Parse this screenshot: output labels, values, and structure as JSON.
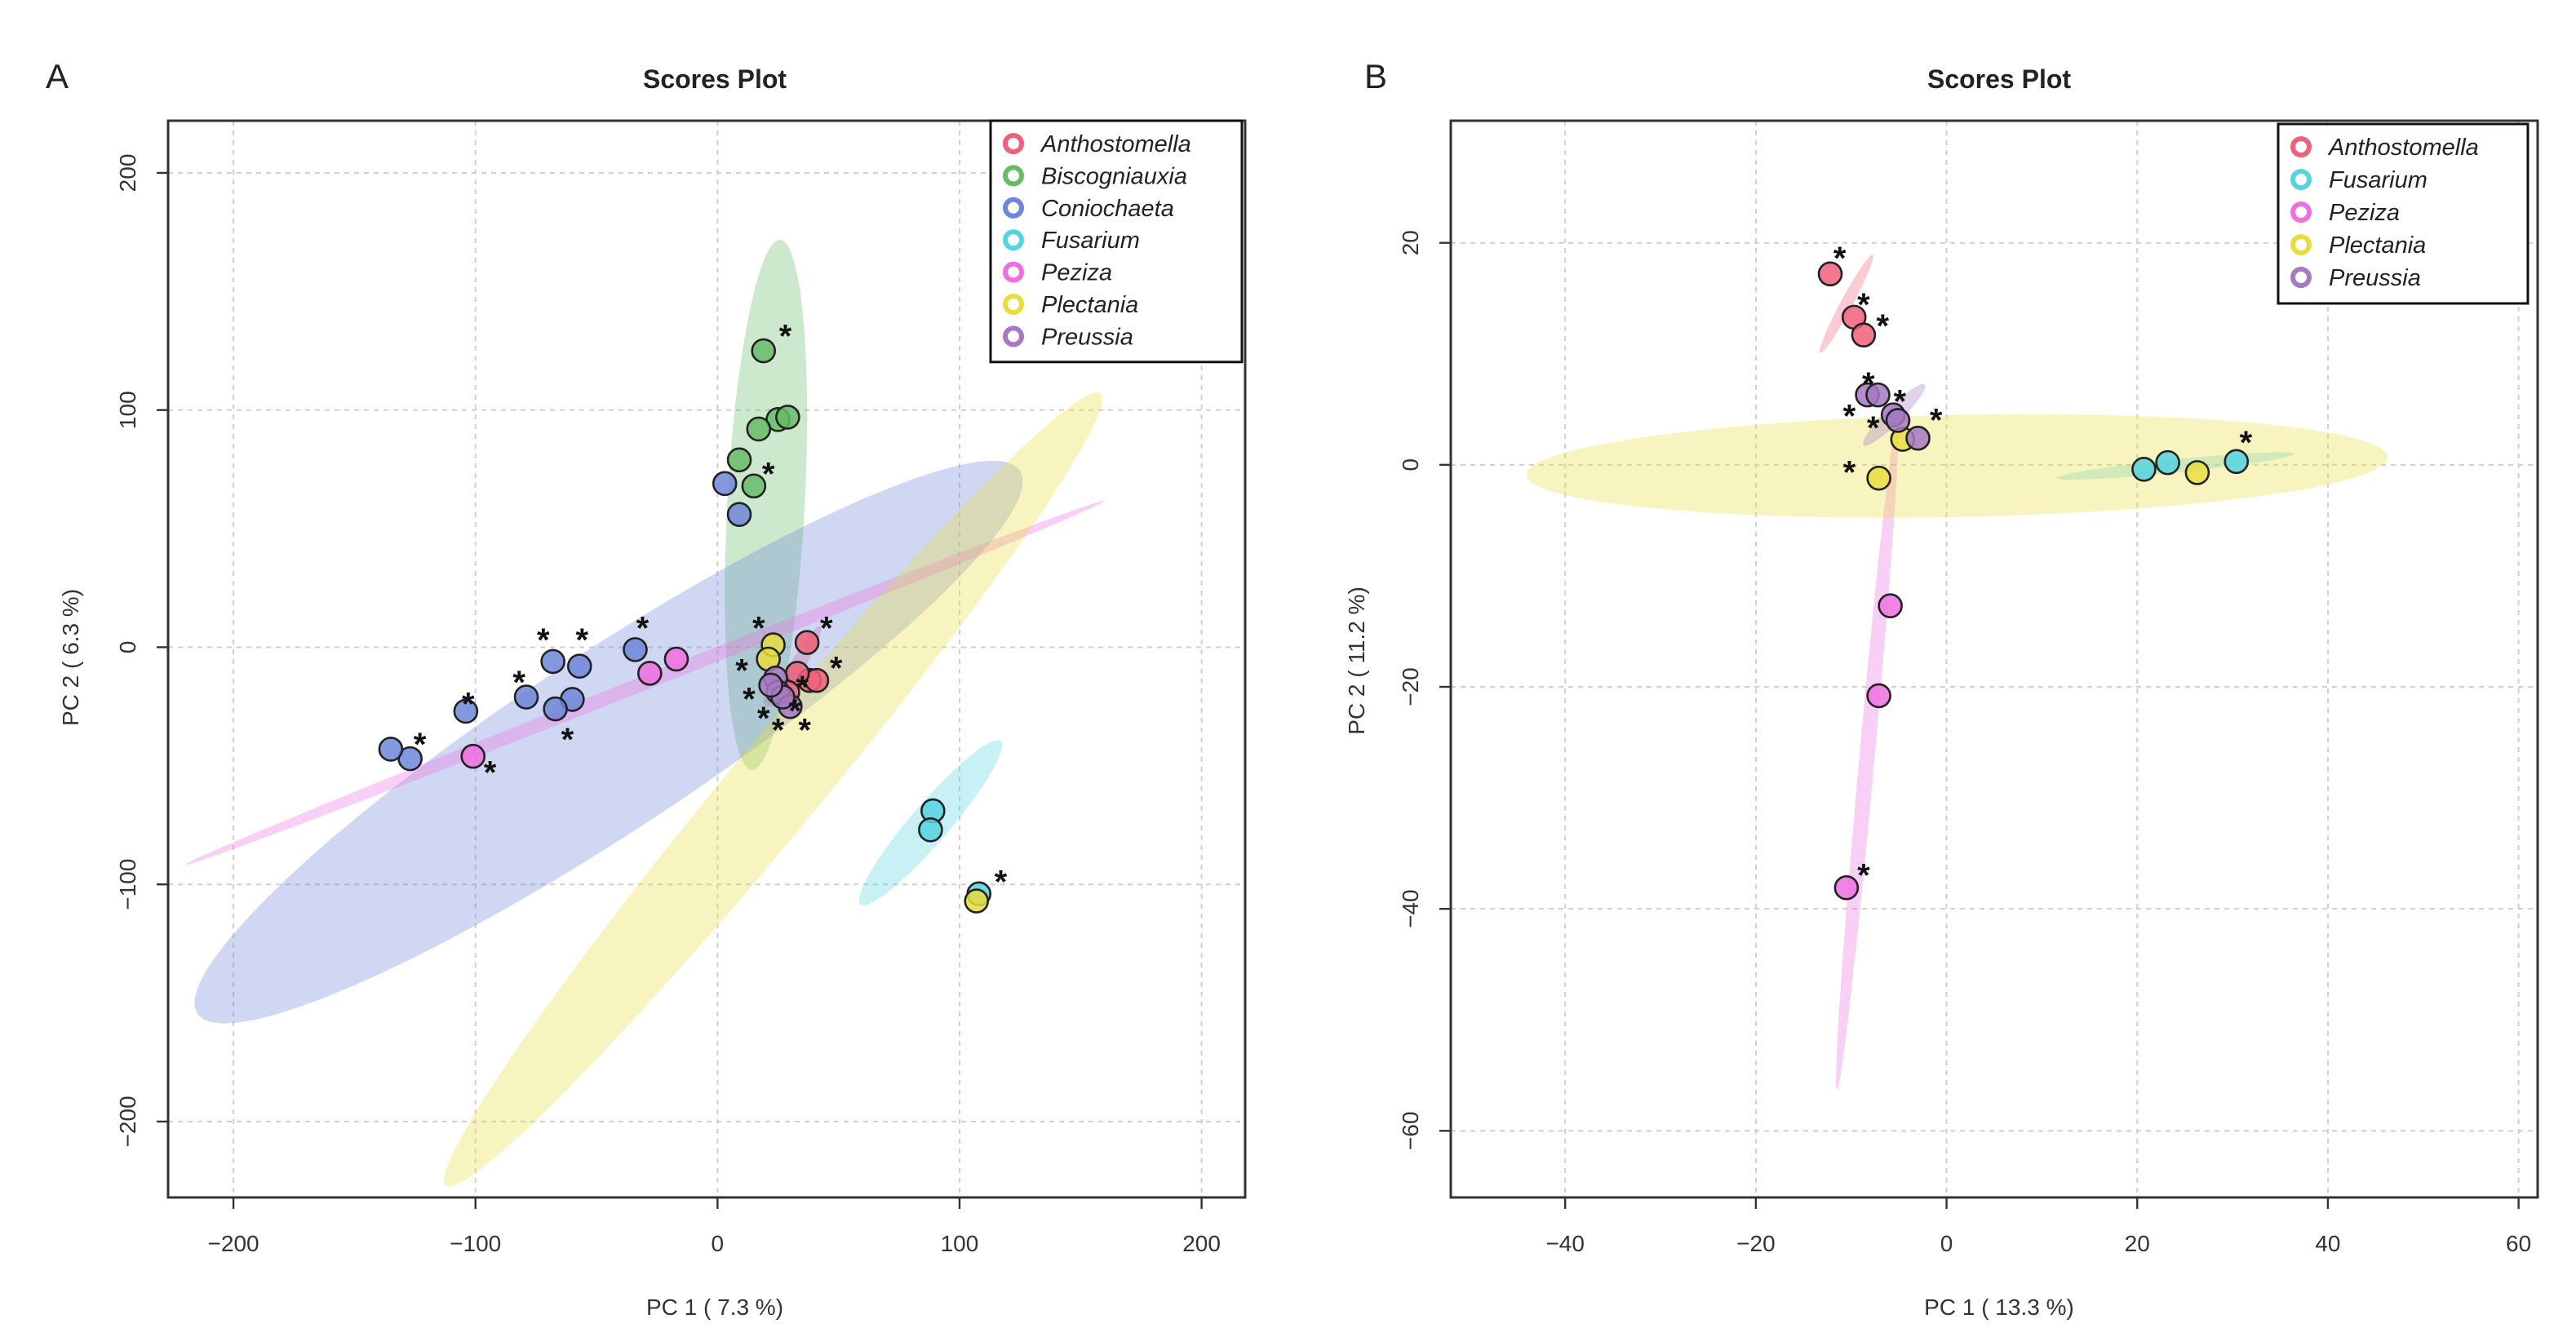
{
  "chart_data": [
    {
      "panel": "A",
      "type": "scatter",
      "title": "Scores Plot",
      "xlabel": "PC 1 ( 7.3 %)",
      "ylabel": "PC 2 ( 6.3 %)",
      "xlim": [
        -227,
        218
      ],
      "ylim": [
        -232,
        222
      ],
      "xticks": [
        -200,
        -100,
        0,
        100,
        200
      ],
      "yticks": [
        -200,
        -100,
        0,
        100,
        200
      ],
      "xtick_labels": [
        "−200",
        "−100",
        "0",
        "100",
        "200"
      ],
      "ytick_labels": [
        "−200",
        "−100",
        "0",
        "100",
        "200"
      ],
      "grid": true,
      "legend_position": "top-right",
      "series": [
        {
          "name": "Anthostomella",
          "color": "#f0607a",
          "points": [
            [
              37,
              2
            ],
            [
              38,
              -14
            ],
            [
              41,
              -14
            ],
            [
              33,
              -11
            ],
            [
              29,
              -19
            ]
          ],
          "stars": [
            [
              45,
              9
            ],
            [
              49,
              -8
            ],
            [
              32,
              -26
            ]
          ],
          "ellipse": {
            "cx": 34,
            "cy": -6,
            "rx": 17,
            "ry": 3,
            "angle": -60
          }
        },
        {
          "name": "Biscogniauxia",
          "color": "#66bb66",
          "points": [
            [
              19,
              125
            ],
            [
              25,
              96
            ],
            [
              29,
              97
            ],
            [
              17,
              92
            ],
            [
              9,
              79
            ],
            [
              15,
              68
            ]
          ],
          "stars": [
            [
              28,
              132
            ],
            [
              21,
              74
            ]
          ],
          "ellipse": {
            "cx": 20,
            "cy": 60,
            "rx": 112,
            "ry": 16,
            "angle": -87
          }
        },
        {
          "name": "Coniochaeta",
          "color": "#6e86d8",
          "points": [
            [
              3,
              69
            ],
            [
              9,
              56
            ],
            [
              -34,
              -1
            ],
            [
              -68,
              -6
            ],
            [
              -57,
              -8
            ],
            [
              -79,
              -21
            ],
            [
              -60,
              -22
            ],
            [
              -67,
              -26
            ],
            [
              -104,
              -27
            ],
            [
              -127,
              -47
            ],
            [
              -135,
              -43
            ]
          ],
          "stars": [
            [
              -72,
              4
            ],
            [
              -56,
              4
            ],
            [
              -31,
              9
            ],
            [
              -82,
              -14
            ],
            [
              -103,
              -23
            ],
            [
              -62,
              -38
            ],
            [
              -123,
              -40
            ]
          ],
          "ellipse": {
            "cx": -45,
            "cy": -40,
            "rx": 205,
            "ry": 37,
            "angle": -34
          }
        },
        {
          "name": "Fusarium",
          "color": "#55d4e0",
          "points": [
            [
              89,
              -69
            ],
            [
              88,
              -77
            ],
            [
              108,
              -104
            ]
          ],
          "stars": [
            [
              117,
              -98
            ]
          ],
          "ellipse": {
            "cx": 88,
            "cy": -74,
            "rx": 45,
            "ry": 8,
            "angle": -50
          }
        },
        {
          "name": "Peziza",
          "color": "#ee70e0",
          "points": [
            [
              -17,
              -5
            ],
            [
              -28,
              -11
            ],
            [
              -101,
              -46
            ]
          ],
          "stars": [
            [
              -94,
              -52
            ]
          ],
          "ellipse": {
            "cx": -30,
            "cy": -15,
            "rx": 205,
            "ry": 3,
            "angle": -22
          }
        },
        {
          "name": "Plectania",
          "color": "#e8dd40",
          "points": [
            [
              23,
              1
            ],
            [
              21,
              -5
            ],
            [
              107,
              -107
            ]
          ],
          "stars": [
            [
              17,
              9
            ],
            [
              10,
              -9
            ],
            [
              13,
              -21
            ],
            [
              19,
              -29
            ],
            [
              25,
              -34
            ],
            [
              36,
              -34
            ],
            [
              35,
              -16
            ]
          ],
          "ellipse": {
            "cx": 23,
            "cy": -60,
            "rx": 215,
            "ry": 19,
            "angle": -51
          }
        },
        {
          "name": "Preussia",
          "color": "#a679c0",
          "points": [
            [
              24,
              -13
            ],
            [
              25,
              -19
            ],
            [
              30,
              -25
            ],
            [
              27,
              -21
            ],
            [
              22,
              -16
            ]
          ],
          "stars": [],
          "ellipse": {
            "cx": 26,
            "cy": -18,
            "rx": 9,
            "ry": 4,
            "angle": -45
          }
        }
      ]
    },
    {
      "panel": "B",
      "type": "scatter",
      "title": "Scores Plot",
      "xlabel": "PC 1 ( 13.3 %)",
      "ylabel": "PC 2 ( 11.2 %)",
      "xlim": [
        -52,
        62
      ],
      "ylim": [
        -66,
        31
      ],
      "xticks": [
        -40,
        -20,
        0,
        20,
        40,
        60
      ],
      "yticks": [
        -60,
        -40,
        -20,
        0,
        20
      ],
      "xtick_labels": [
        "−40",
        "−20",
        "0",
        "20",
        "40",
        "60"
      ],
      "ytick_labels": [
        "−60",
        "−40",
        "−20",
        "0",
        "20"
      ],
      "grid": true,
      "legend_position": "top-right",
      "series": [
        {
          "name": "Anthostomella",
          "color": "#f0607a",
          "points": [
            [
              -12.2,
              17.2
            ],
            [
              -9.7,
              13.3
            ],
            [
              -8.7,
              11.7
            ]
          ],
          "stars": [
            [
              -11.2,
              18.8
            ],
            [
              -8.7,
              14.6
            ],
            [
              -6.7,
              12.7
            ]
          ],
          "ellipse": {
            "cx": -10.5,
            "cy": 14.5,
            "rx": 5.2,
            "ry": 0.6,
            "angle": -58
          }
        },
        {
          "name": "Fusarium",
          "color": "#55d4e0",
          "points": [
            [
              20.7,
              -0.4
            ],
            [
              23.2,
              0.2
            ],
            [
              30.4,
              0.3
            ]
          ],
          "stars": [
            [
              31.4,
              2.2
            ]
          ],
          "ellipse": {
            "cx": 24,
            "cy": -0.1,
            "rx": 12.5,
            "ry": 0.6,
            "angle": -5
          }
        },
        {
          "name": "Peziza",
          "color": "#ee70e0",
          "points": [
            [
              -5.9,
              -12.7
            ],
            [
              -7.1,
              -20.8
            ],
            [
              -10.5,
              -38.1
            ]
          ],
          "stars": [
            [
              -8.7,
              -36.8
            ]
          ],
          "ellipse": {
            "cx": -8.3,
            "cy": -25.9,
            "rx": 30.6,
            "ry": 0.8,
            "angle": -84
          }
        },
        {
          "name": "Plectania",
          "color": "#e8dd40",
          "points": [
            [
              -7.1,
              -1.2
            ],
            [
              26.3,
              -0.7
            ],
            [
              -4.6,
              2.3
            ]
          ],
          "stars": [
            [
              -10.2,
              -0.5
            ],
            [
              -10.2,
              4.6
            ],
            [
              -7.7,
              3.5
            ]
          ],
          "ellipse": {
            "cx": 1.1,
            "cy": -0.1,
            "rx": 45.2,
            "ry": 4.6,
            "angle": -1
          }
        },
        {
          "name": "Preussia",
          "color": "#a679c0",
          "points": [
            [
              -8.3,
              6.3
            ],
            [
              -7.2,
              6.3
            ],
            [
              -5.6,
              4.5
            ],
            [
              -5.1,
              4.0
            ],
            [
              -3.0,
              2.4
            ]
          ],
          "stars": [
            [
              -8.2,
              7.5
            ],
            [
              -4.9,
              5.9
            ],
            [
              -1.1,
              4.2
            ]
          ],
          "ellipse": {
            "cx": -5.5,
            "cy": 4.5,
            "rx": 4.2,
            "ry": 0.8,
            "angle": -40
          }
        }
      ]
    }
  ]
}
